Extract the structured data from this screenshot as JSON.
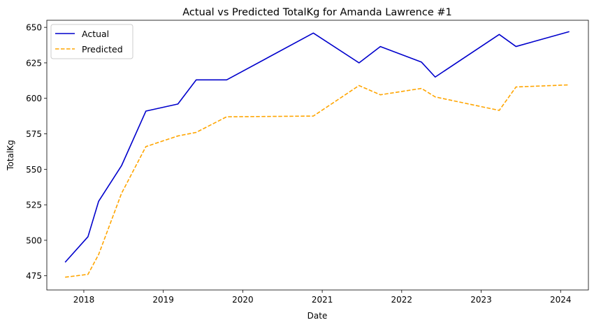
{
  "chart_data": {
    "type": "line",
    "title": "Actual vs Predicted TotalKg for Amanda Lawrence #1",
    "xlabel": "Date",
    "ylabel": "TotalKg",
    "x_ticks": [
      "2018",
      "2019",
      "2020",
      "2021",
      "2022",
      "2023",
      "2024"
    ],
    "y_ticks": [
      475,
      500,
      525,
      550,
      575,
      600,
      625,
      650
    ],
    "xlim": [
      "2017-07-15",
      "2024-05-08"
    ],
    "ylim": [
      465,
      655
    ],
    "grid": false,
    "legend_position": "upper-left",
    "x": [
      "2017-10-07",
      "2018-01-20",
      "2018-03-10",
      "2018-06-23",
      "2018-10-13",
      "2019-03-09",
      "2019-06-01",
      "2019-10-19",
      "2020-11-21",
      "2021-06-19",
      "2021-09-25",
      "2022-04-02",
      "2022-06-04",
      "2023-03-25",
      "2023-06-10",
      "2024-02-10"
    ],
    "series": [
      {
        "name": "Actual",
        "color": "#0000cc",
        "style": "solid",
        "values": [
          484.5,
          502.5,
          527.5,
          552.5,
          591,
          596,
          613,
          613,
          646,
          625,
          636.5,
          625.5,
          615,
          645,
          636.5,
          647
        ]
      },
      {
        "name": "Predicted",
        "color": "#ffa500",
        "style": "dashed",
        "values": [
          474,
          476,
          490,
          533,
          566,
          573.5,
          576,
          587,
          587.5,
          609,
          602.5,
          607,
          601,
          591.5,
          608,
          609.5
        ]
      }
    ]
  }
}
